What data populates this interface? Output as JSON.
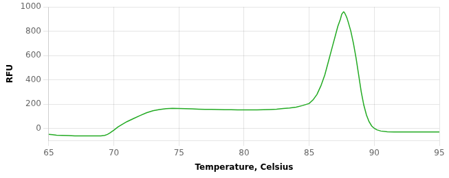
{
  "chart_data": {
    "type": "line",
    "xlabel": "Temperature, Celsius",
    "ylabel": "RFU",
    "color": "#22AA22",
    "x": [
      65.0,
      65.3,
      65.6,
      66.0,
      66.5,
      67.0,
      67.5,
      68.0,
      68.5,
      69.0,
      69.3,
      69.5,
      69.7,
      70.0,
      70.3,
      70.6,
      71.0,
      71.5,
      72.0,
      72.5,
      73.0,
      73.5,
      74.0,
      74.5,
      75.0,
      75.5,
      76.0,
      76.5,
      77.0,
      77.5,
      78.0,
      78.5,
      79.0,
      79.5,
      80.0,
      80.5,
      81.0,
      81.5,
      82.0,
      82.5,
      83.0,
      83.5,
      84.0,
      84.5,
      85.0,
      85.3,
      85.6,
      85.9,
      86.2,
      86.5,
      86.8,
      87.0,
      87.2,
      87.4,
      87.5,
      87.6,
      87.65,
      87.7,
      87.8,
      87.9,
      88.0,
      88.2,
      88.4,
      88.6,
      88.8,
      89.0,
      89.2,
      89.4,
      89.6,
      89.8,
      90.0,
      90.2,
      90.5,
      91.0,
      91.5,
      92.0,
      93.0,
      94.0,
      95.0
    ],
    "values": [
      -50,
      -53,
      -56,
      -58,
      -60,
      -62,
      -62,
      -62,
      -62,
      -62,
      -58,
      -50,
      -38,
      -15,
      10,
      30,
      55,
      80,
      105,
      128,
      145,
      155,
      162,
      165,
      163,
      162,
      160,
      158,
      157,
      156,
      155,
      154,
      153,
      152,
      152,
      152,
      152,
      153,
      155,
      158,
      163,
      168,
      175,
      188,
      205,
      235,
      280,
      350,
      440,
      560,
      680,
      760,
      840,
      900,
      940,
      955,
      960,
      955,
      935,
      910,
      875,
      800,
      700,
      580,
      440,
      300,
      190,
      110,
      55,
      20,
      0,
      -12,
      -22,
      -28,
      -30,
      -30,
      -30,
      -30,
      -30
    ],
    "xlim": [
      65,
      95
    ],
    "ylim": [
      -100,
      1000
    ],
    "xticks": [
      65,
      70,
      75,
      80,
      85,
      90,
      95
    ],
    "yticks": [
      0,
      200,
      400,
      600,
      800,
      1000
    ],
    "grid": true
  }
}
